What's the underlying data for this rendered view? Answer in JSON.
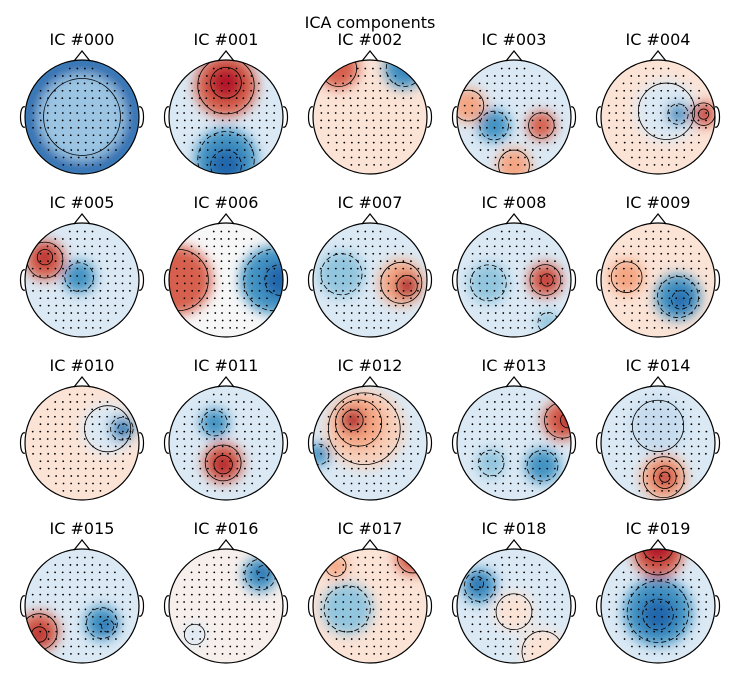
{
  "figure": {
    "title": "ICA components"
  },
  "chart_data": {
    "type": "topomap",
    "title": "ICA components",
    "colormap": "RdBu_r",
    "colors": {
      "positive": "#b2182b",
      "negative": "#2166ac",
      "neutral": "#f7f7f7"
    },
    "grid": {
      "rows": 4,
      "cols": 5
    },
    "components": [
      {
        "label": "IC #000",
        "pattern": "global negative, strongest at rim"
      },
      {
        "label": "IC #001",
        "pattern": "frontal positive, posterior negative"
      },
      {
        "label": "IC #002",
        "pattern": "left-frontal positive, right-frontal negative"
      },
      {
        "label": "IC #003",
        "pattern": "left temporal positive, left-central negative, right-central positive"
      },
      {
        "label": "IC #004",
        "pattern": "right temporal positive, right-central negative"
      },
      {
        "label": "IC #005",
        "pattern": "left temporal positive, central negative"
      },
      {
        "label": "IC #006",
        "pattern": "left positive, right negative gradient"
      },
      {
        "label": "IC #007",
        "pattern": "right temporal positive, left negative"
      },
      {
        "label": "IC #008",
        "pattern": "right-central positive, left-central negative"
      },
      {
        "label": "IC #009",
        "pattern": "right-parietal negative, left positive"
      },
      {
        "label": "IC #010",
        "pattern": "right-central negative"
      },
      {
        "label": "IC #011",
        "pattern": "central-posterior positive, frontal negative"
      },
      {
        "label": "IC #012",
        "pattern": "left-frontal positive, edge negative"
      },
      {
        "label": "IC #013",
        "pattern": "right edge positive, posterior negative"
      },
      {
        "label": "IC #014",
        "pattern": "occipital positive, frontal negative"
      },
      {
        "label": "IC #015",
        "pattern": "left-occipital positive, right-posterior negative"
      },
      {
        "label": "IC #016",
        "pattern": "right-frontal negative"
      },
      {
        "label": "IC #017",
        "pattern": "right-frontal positive, left-central negative"
      },
      {
        "label": "IC #018",
        "pattern": "left negative, central positive"
      },
      {
        "label": "IC #019",
        "pattern": "frontal edge positive, central-posterior negative"
      }
    ]
  }
}
